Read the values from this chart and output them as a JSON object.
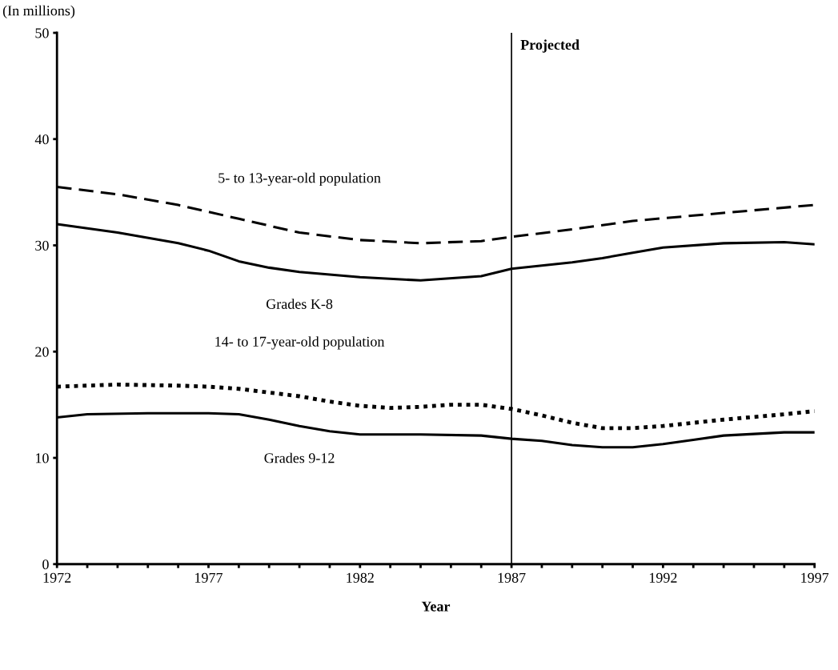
{
  "chart_data": {
    "type": "line",
    "ylabel": "(In millions)",
    "xlabel": "Year",
    "xlim": [
      1972,
      1997
    ],
    "ylim": [
      0,
      50
    ],
    "yticks": [
      0,
      10,
      20,
      30,
      40,
      50
    ],
    "xticks": [
      1972,
      {
        "value": 1973,
        "label": null
      },
      {
        "value": 1974,
        "label": null
      },
      {
        "value": 1975,
        "label": null
      },
      {
        "value": 1976,
        "label": null
      },
      1977,
      {
        "value": 1978,
        "label": null
      },
      {
        "value": 1979,
        "label": null
      },
      {
        "value": 1980,
        "label": null
      },
      {
        "value": 1981,
        "label": null
      },
      1982,
      {
        "value": 1983,
        "label": null
      },
      {
        "value": 1984,
        "label": null
      },
      {
        "value": 1985,
        "label": null
      },
      {
        "value": 1986,
        "label": null
      },
      1987,
      {
        "value": 1988,
        "label": null
      },
      {
        "value": 1989,
        "label": null
      },
      {
        "value": 1990,
        "label": null
      },
      {
        "value": 1991,
        "label": null
      },
      1992,
      {
        "value": 1993,
        "label": null
      },
      {
        "value": 1994,
        "label": null
      },
      {
        "value": 1995,
        "label": null
      },
      {
        "value": 1996,
        "label": null
      },
      1997
    ],
    "grid": false,
    "legend": false,
    "ref_lines": [
      {
        "axis": "x",
        "value": 1987,
        "label": "Projected",
        "color": "#000000"
      }
    ],
    "series": [
      {
        "name": "5- to 13-year-old population",
        "color": "#000000",
        "line_style": "dashed",
        "x": [
          1972,
          1974,
          1976,
          1978,
          1980,
          1982,
          1984,
          1986,
          1987,
          1989,
          1991,
          1993,
          1995,
          1997
        ],
        "values": [
          35.5,
          34.8,
          33.8,
          32.5,
          31.2,
          30.5,
          30.2,
          30.4,
          30.8,
          31.5,
          32.3,
          32.8,
          33.3,
          33.8
        ]
      },
      {
        "name": "Grades K-8",
        "color": "#000000",
        "line_style": "solid",
        "x": [
          1972,
          1974,
          1976,
          1977,
          1978,
          1979,
          1980,
          1982,
          1984,
          1986,
          1987,
          1989,
          1990,
          1991,
          1992,
          1994,
          1996,
          1997
        ],
        "values": [
          32.0,
          31.2,
          30.2,
          29.5,
          28.5,
          27.9,
          27.5,
          27.0,
          26.7,
          27.1,
          27.8,
          28.4,
          28.8,
          29.3,
          29.8,
          30.2,
          30.3,
          30.1
        ]
      },
      {
        "name": "14- to 17-year-old population",
        "color": "#000000",
        "line_style": "dotted",
        "x": [
          1972,
          1974,
          1976,
          1977,
          1978,
          1980,
          1981,
          1982,
          1983,
          1984,
          1985,
          1986,
          1987,
          1988,
          1989,
          1990,
          1991,
          1992,
          1994,
          1996,
          1997
        ],
        "values": [
          16.7,
          16.9,
          16.8,
          16.7,
          16.5,
          15.8,
          15.3,
          14.9,
          14.7,
          14.8,
          15.0,
          15.0,
          14.6,
          14.0,
          13.3,
          12.8,
          12.8,
          13.0,
          13.6,
          14.1,
          14.4
        ]
      },
      {
        "name": "Grades 9-12",
        "color": "#000000",
        "line_style": "solid",
        "x": [
          1972,
          1973,
          1975,
          1977,
          1978,
          1979,
          1980,
          1981,
          1982,
          1984,
          1986,
          1987,
          1988,
          1989,
          1990,
          1991,
          1992,
          1993,
          1994,
          1996,
          1997
        ],
        "values": [
          13.8,
          14.1,
          14.2,
          14.2,
          14.1,
          13.6,
          13.0,
          12.5,
          12.2,
          12.2,
          12.1,
          11.8,
          11.6,
          11.2,
          11.0,
          11.0,
          11.3,
          11.7,
          12.1,
          12.4,
          12.4
        ]
      }
    ]
  }
}
